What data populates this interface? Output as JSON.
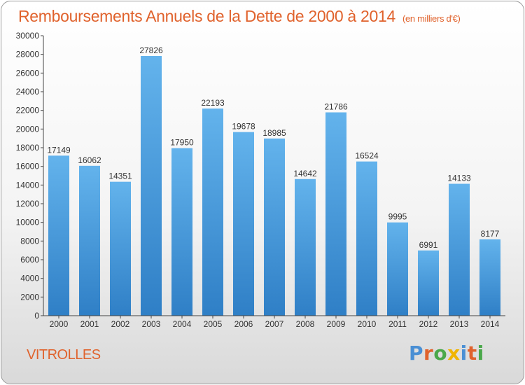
{
  "header": {
    "title": "Remboursements Annuels de la Dette de 2000 à 2014",
    "unit_note": "(en milliers d'€)"
  },
  "footer": {
    "city": "VITROLLES",
    "brand": "Proxiti"
  },
  "colors": {
    "title": "#e0622c",
    "bar_top": "#63b3ec",
    "bar_bottom": "#2f7fc6",
    "axis": "#444444"
  },
  "chart_data": {
    "type": "bar",
    "title": "Remboursements Annuels de la Dette de 2000 à 2014",
    "xlabel": "",
    "ylabel": "",
    "categories": [
      "2000",
      "2001",
      "2002",
      "2003",
      "2004",
      "2005",
      "2006",
      "2007",
      "2008",
      "2009",
      "2010",
      "2011",
      "2012",
      "2013",
      "2014"
    ],
    "values": [
      17149,
      16062,
      14351,
      27826,
      17950,
      22193,
      19678,
      18985,
      14642,
      21786,
      16524,
      9995,
      6991,
      14133,
      8177
    ],
    "yticks": [
      "0",
      "2000",
      "4000",
      "6000",
      "8000",
      "10000",
      "12000",
      "14000",
      "16000",
      "18000",
      "20000",
      "22000",
      "24000",
      "26000",
      "28000",
      "30000"
    ],
    "ylim": [
      0,
      30000
    ],
    "grid": false,
    "legend": "none"
  }
}
